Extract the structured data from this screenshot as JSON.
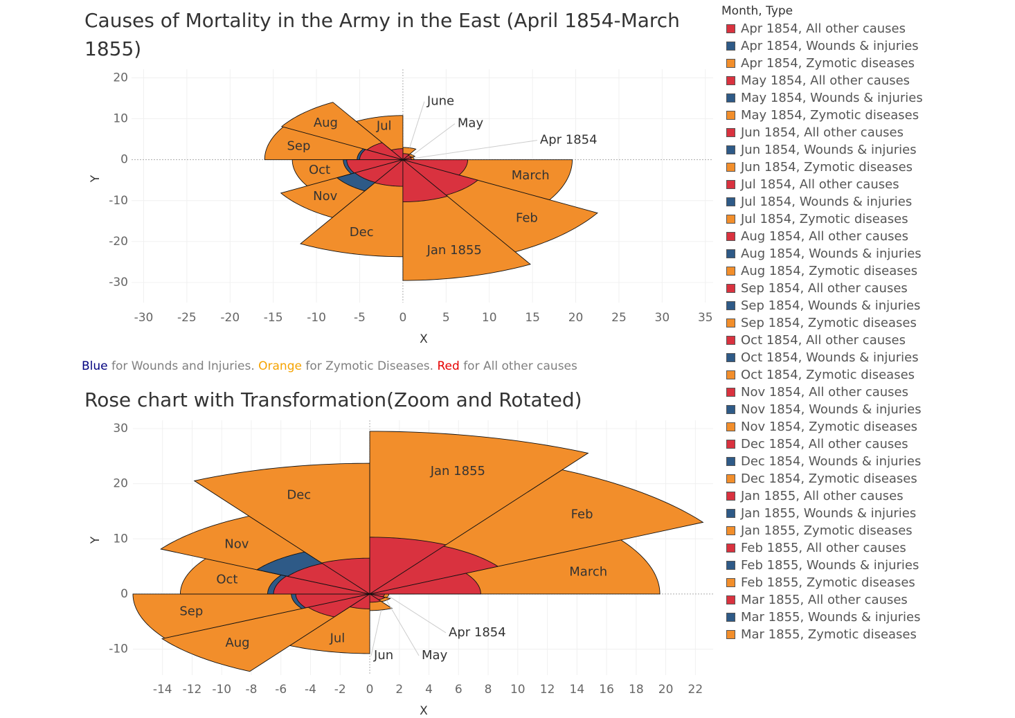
{
  "chart_data": [
    {
      "type": "rose",
      "title": "Causes of Mortality in the Army in the East (April 1854-March 1855)",
      "caption": [
        {
          "text": "Blue",
          "color": "#00007f"
        },
        {
          "text": " for Wounds and Injuries. ",
          "color": "#808080"
        },
        {
          "text": "Orange",
          "color": "#f5a300"
        },
        {
          "text": " for Zymotic Diseases. ",
          "color": "#808080"
        },
        {
          "text": "Red",
          "color": "#e60000"
        },
        {
          "text": " for All other causes",
          "color": "#808080"
        }
      ],
      "direction": "counterclockwise",
      "x_label": "X",
      "y_label": "Y",
      "categories": [
        "Apr 1854",
        "May",
        "June",
        "Jul",
        "Aug",
        "Sep",
        "Oct",
        "Nov",
        "Dec",
        "Jan 1855",
        "Feb",
        "March"
      ],
      "series": [
        {
          "name": "Zymotic diseases",
          "color": "#f28e2b",
          "values": [
            1.3,
            1.6,
            3.0,
            10.8,
            16.2,
            16.0,
            12.8,
            16.3,
            23.7,
            29.5,
            26.0,
            19.6
          ]
        },
        {
          "name": "Wounds & injuries",
          "color": "#2e5a87",
          "values": [
            0.4,
            0.5,
            0.6,
            0.8,
            3.5,
            5.3,
            6.9,
            8.8,
            5.5,
            6.0,
            4.5,
            3.0
          ]
        },
        {
          "name": "All other causes",
          "color": "#d9323f",
          "values": [
            1.0,
            1.2,
            1.5,
            2.7,
            4.8,
            5.0,
            6.5,
            6.4,
            6.5,
            10.3,
            10.0,
            7.5
          ]
        }
      ],
      "xlim": [
        -31.4,
        35.9
      ],
      "xticks": [
        -30,
        -25,
        -20,
        -15,
        -10,
        -5,
        0,
        5,
        10,
        15,
        20,
        25,
        30,
        35
      ],
      "ylim": [
        -34.9,
        22.1
      ],
      "yticks": [
        -30,
        -20,
        -10,
        0,
        10,
        20
      ],
      "grid": true
    },
    {
      "type": "rose",
      "title": "Rose chart with Transformation(Zoom and Rotated)",
      "direction": "clockwise",
      "x_label": "X",
      "y_label": "Y",
      "categories": [
        "Apr 1854",
        "May",
        "Jun",
        "Jul",
        "Aug",
        "Sep",
        "Oct",
        "Nov",
        "Dec",
        "Jan 1855",
        "Feb",
        "March"
      ],
      "series": [
        {
          "name": "Zymotic diseases",
          "color": "#f28e2b",
          "values": [
            1.3,
            1.6,
            3.0,
            10.8,
            16.2,
            16.0,
            12.8,
            16.3,
            23.7,
            29.5,
            26.0,
            19.6
          ]
        },
        {
          "name": "Wounds & injuries",
          "color": "#2e5a87",
          "values": [
            0.4,
            0.5,
            0.6,
            0.8,
            3.5,
            5.3,
            6.9,
            8.8,
            5.5,
            6.0,
            4.5,
            3.0
          ]
        },
        {
          "name": "All other causes",
          "color": "#d9323f",
          "values": [
            1.0,
            1.2,
            1.5,
            2.7,
            4.8,
            5.0,
            6.5,
            6.4,
            6.5,
            10.3,
            10.0,
            7.5
          ]
        }
      ],
      "xlim": [
        -16.0,
        23.2
      ],
      "xticks": [
        -14,
        -12,
        -10,
        -8,
        -6,
        -4,
        -2,
        0,
        2,
        4,
        6,
        8,
        10,
        12,
        14,
        16,
        18,
        20,
        22
      ],
      "ylim": [
        -14.7,
        31.5
      ],
      "yticks": [
        -10,
        0,
        10,
        20,
        30
      ],
      "grid": true
    }
  ],
  "legend": {
    "title": "Month, Type",
    "items": [
      {
        "label": "Apr 1854, All other causes",
        "color": "#d9323f"
      },
      {
        "label": "Apr 1854, Wounds & injuries",
        "color": "#2e5a87"
      },
      {
        "label": "Apr 1854, Zymotic diseases",
        "color": "#f28e2b"
      },
      {
        "label": "May 1854, All other causes",
        "color": "#d9323f"
      },
      {
        "label": "May 1854, Wounds & injuries",
        "color": "#2e5a87"
      },
      {
        "label": "May 1854, Zymotic diseases",
        "color": "#f28e2b"
      },
      {
        "label": "Jun 1854, All other causes",
        "color": "#d9323f"
      },
      {
        "label": "Jun 1854, Wounds & injuries",
        "color": "#2e5a87"
      },
      {
        "label": "Jun 1854, Zymotic diseases",
        "color": "#f28e2b"
      },
      {
        "label": "Jul 1854, All other causes",
        "color": "#d9323f"
      },
      {
        "label": "Jul 1854, Wounds & injuries",
        "color": "#2e5a87"
      },
      {
        "label": "Jul 1854, Zymotic diseases",
        "color": "#f28e2b"
      },
      {
        "label": "Aug 1854, All other causes",
        "color": "#d9323f"
      },
      {
        "label": "Aug 1854, Wounds & injuries",
        "color": "#2e5a87"
      },
      {
        "label": "Aug 1854, Zymotic diseases",
        "color": "#f28e2b"
      },
      {
        "label": "Sep 1854, All other causes",
        "color": "#d9323f"
      },
      {
        "label": "Sep 1854, Wounds & injuries",
        "color": "#2e5a87"
      },
      {
        "label": "Sep 1854, Zymotic diseases",
        "color": "#f28e2b"
      },
      {
        "label": "Oct 1854, All other causes",
        "color": "#d9323f"
      },
      {
        "label": "Oct 1854, Wounds & injuries",
        "color": "#2e5a87"
      },
      {
        "label": "Oct 1854, Zymotic diseases",
        "color": "#f28e2b"
      },
      {
        "label": "Nov 1854, All other causes",
        "color": "#d9323f"
      },
      {
        "label": "Nov 1854, Wounds & injuries",
        "color": "#2e5a87"
      },
      {
        "label": "Nov 1854, Zymotic diseases",
        "color": "#f28e2b"
      },
      {
        "label": "Dec 1854, All other causes",
        "color": "#d9323f"
      },
      {
        "label": "Dec 1854, Wounds & injuries",
        "color": "#2e5a87"
      },
      {
        "label": "Dec 1854, Zymotic diseases",
        "color": "#f28e2b"
      },
      {
        "label": "Jan 1855, All other causes",
        "color": "#d9323f"
      },
      {
        "label": "Jan 1855, Wounds & injuries",
        "color": "#2e5a87"
      },
      {
        "label": "Jan 1855, Zymotic diseases",
        "color": "#f28e2b"
      },
      {
        "label": "Feb 1855, All other causes",
        "color": "#d9323f"
      },
      {
        "label": "Feb 1855, Wounds & injuries",
        "color": "#2e5a87"
      },
      {
        "label": "Feb 1855, Zymotic diseases",
        "color": "#f28e2b"
      },
      {
        "label": "Mar 1855, All other causes",
        "color": "#d9323f"
      },
      {
        "label": "Mar 1855, Wounds & injuries",
        "color": "#2e5a87"
      },
      {
        "label": "Mar 1855, Zymotic diseases",
        "color": "#f28e2b"
      }
    ]
  }
}
